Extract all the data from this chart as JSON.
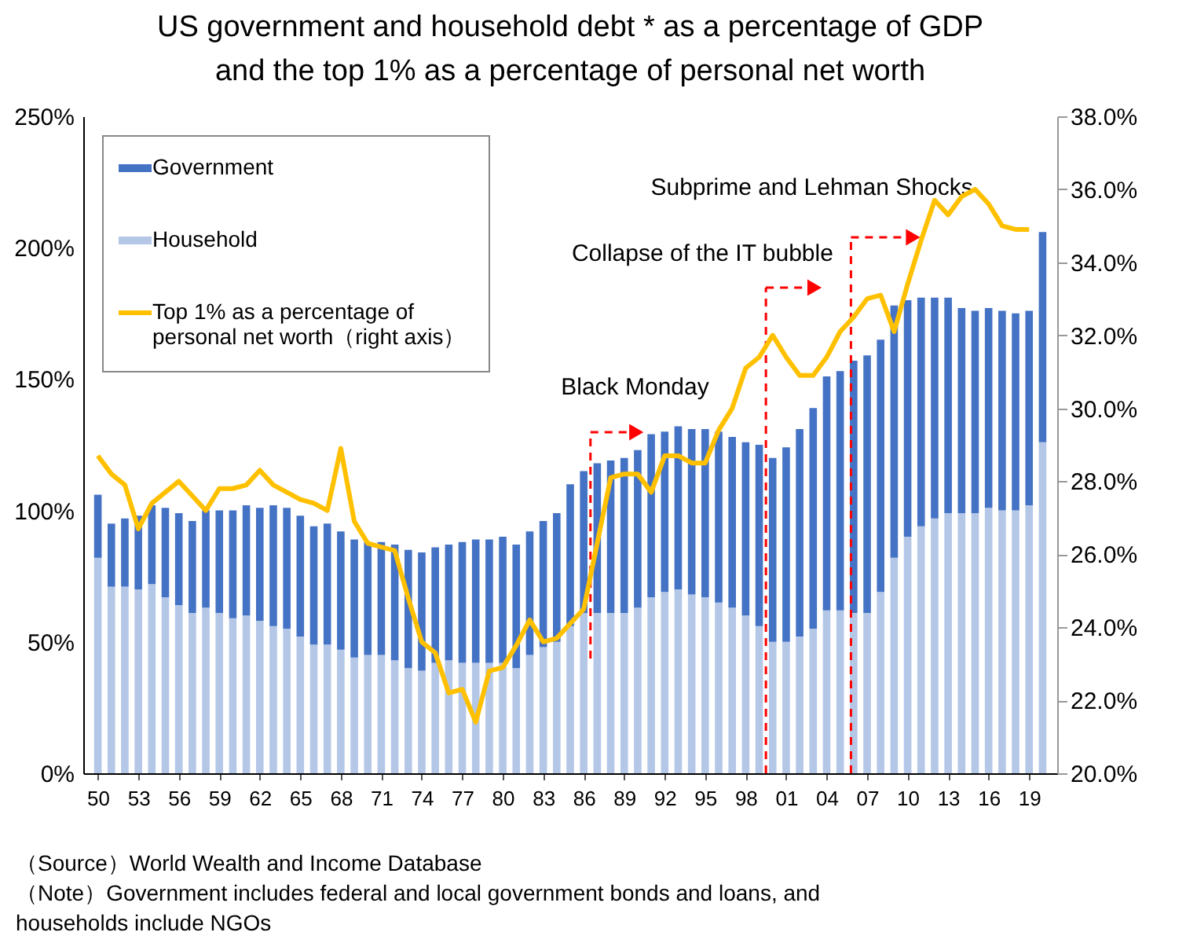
{
  "chart_data": {
    "type": "bar",
    "title": "US government and household debt * as a percentage of GDP and the top 1% as a percentage of personal net worth",
    "x": [
      1950,
      1951,
      1952,
      1953,
      1954,
      1955,
      1956,
      1957,
      1958,
      1959,
      1960,
      1961,
      1962,
      1963,
      1964,
      1965,
      1966,
      1967,
      1968,
      1969,
      1970,
      1971,
      1972,
      1973,
      1974,
      1975,
      1976,
      1977,
      1978,
      1979,
      1980,
      1981,
      1982,
      1983,
      1984,
      1985,
      1986,
      1987,
      1988,
      1989,
      1990,
      1991,
      1992,
      1993,
      1994,
      1995,
      1996,
      1997,
      1998,
      1999,
      2000,
      2001,
      2002,
      2003,
      2004,
      2005,
      2006,
      2007,
      2008,
      2009,
      2010,
      2011,
      2012,
      2013,
      2014,
      2015,
      2016,
      2017,
      2018,
      2019,
      2020
    ],
    "stacked": true,
    "series": [
      {
        "name": "Household",
        "color": "#b4c7e7",
        "values": [
          82,
          71,
          71,
          70,
          72,
          67,
          64,
          61,
          63,
          61,
          59,
          60,
          58,
          56,
          55,
          52,
          49,
          49,
          47,
          44,
          45,
          45,
          43,
          40,
          39,
          42,
          43,
          42,
          42,
          42,
          42,
          40,
          45,
          48,
          50,
          56,
          61,
          61,
          61,
          61,
          63,
          67,
          69,
          70,
          68,
          67,
          65,
          63,
          60,
          56,
          50,
          50,
          52,
          55,
          62,
          62,
          61,
          61,
          69,
          82,
          90,
          94,
          97,
          99,
          99,
          99,
          101,
          100,
          100,
          102,
          126
        ]
      },
      {
        "name": "Government",
        "color": "#4472c4",
        "values": [
          24,
          24,
          26,
          28,
          30,
          34,
          35,
          35,
          37,
          39,
          41,
          42,
          43,
          46,
          46,
          46,
          45,
          46,
          45,
          45,
          43,
          43,
          44,
          45,
          45,
          44,
          44,
          46,
          47,
          47,
          48,
          47,
          47,
          48,
          49,
          54,
          54,
          57,
          58,
          59,
          60,
          62,
          61,
          62,
          63,
          64,
          65,
          65,
          66,
          69,
          70,
          74,
          79,
          84,
          89,
          91,
          96,
          98,
          96,
          96,
          90,
          87,
          84,
          82,
          78,
          77,
          76,
          76,
          75,
          74,
          80
        ]
      },
      {
        "name": "Top 1% as a percentage of personal net worth（right axis）",
        "type": "line",
        "axis": "y2",
        "color": "#ffc000",
        "values": [
          28.7,
          28.2,
          27.9,
          26.7,
          27.4,
          27.7,
          28.0,
          27.6,
          27.2,
          27.8,
          27.8,
          27.9,
          28.3,
          27.9,
          27.7,
          27.5,
          27.4,
          27.2,
          28.9,
          26.9,
          26.3,
          26.2,
          26.1,
          24.8,
          23.6,
          23.3,
          22.2,
          22.3,
          21.4,
          22.8,
          22.9,
          23.5,
          24.2,
          23.6,
          23.7,
          24.1,
          24.5,
          26.3,
          28.1,
          28.2,
          28.2,
          27.7,
          28.7,
          28.7,
          28.5,
          28.5,
          29.4,
          30.0,
          31.1,
          31.4,
          32.0,
          31.4,
          30.9,
          30.9,
          31.4,
          32.1,
          32.5,
          33.0,
          33.1,
          32.1,
          33.4,
          34.6,
          35.7,
          35.3,
          35.8,
          36.0,
          35.6,
          35.0,
          34.9,
          34.9,
          null
        ]
      }
    ],
    "xlim": [
      1949.5,
      2020.5
    ],
    "xticks": [
      {
        "value": 1950,
        "label": "50"
      },
      {
        "value": 1953,
        "label": "53"
      },
      {
        "value": 1956,
        "label": "56"
      },
      {
        "value": 1959,
        "label": "59"
      },
      {
        "value": 1962,
        "label": "62"
      },
      {
        "value": 1965,
        "label": "65"
      },
      {
        "value": 1968,
        "label": "68"
      },
      {
        "value": 1971,
        "label": "71"
      },
      {
        "value": 1974,
        "label": "74"
      },
      {
        "value": 1977,
        "label": "77"
      },
      {
        "value": 1980,
        "label": "80"
      },
      {
        "value": 1983,
        "label": "83"
      },
      {
        "value": 1986,
        "label": "86"
      },
      {
        "value": 1989,
        "label": "89"
      },
      {
        "value": 1992,
        "label": "92"
      },
      {
        "value": 1995,
        "label": "95"
      },
      {
        "value": 1998,
        "label": "98"
      },
      {
        "value": 2001,
        "label": "01"
      },
      {
        "value": 2004,
        "label": "04"
      },
      {
        "value": 2007,
        "label": "07"
      },
      {
        "value": 2010,
        "label": "10"
      },
      {
        "value": 2013,
        "label": "13"
      },
      {
        "value": 2016,
        "label": "16"
      },
      {
        "value": 2019,
        "label": "19"
      }
    ],
    "ylim": [
      0,
      250
    ],
    "yticks": [
      {
        "value": 0,
        "label": "0%"
      },
      {
        "value": 50,
        "label": "50%"
      },
      {
        "value": 100,
        "label": "100%"
      },
      {
        "value": 150,
        "label": "150%"
      },
      {
        "value": 200,
        "label": "200%"
      },
      {
        "value": 250,
        "label": "250%"
      }
    ],
    "y2lim": [
      20,
      38
    ],
    "y2ticks": [
      {
        "value": 20,
        "label": "20.0%"
      },
      {
        "value": 22,
        "label": "22.0%"
      },
      {
        "value": 24,
        "label": "24.0%"
      },
      {
        "value": 26,
        "label": "26.0%"
      },
      {
        "value": 28,
        "label": "28.0%"
      },
      {
        "value": 30,
        "label": "30.0%"
      },
      {
        "value": 32,
        "label": "32.0%"
      },
      {
        "value": 34,
        "label": "34.0%"
      },
      {
        "value": 36,
        "label": "36.0%"
      },
      {
        "value": 38,
        "label": "38.0%"
      }
    ],
    "ref_lines": [
      {
        "axis": "x",
        "value": 1986.5,
        "label": "Black Monday",
        "color": "#ff0000",
        "line_style": "dashed"
      },
      {
        "axis": "x",
        "value": 1999.5,
        "label": "Collapse of the IT bubble",
        "color": "#ff0000",
        "line_style": "dashed"
      },
      {
        "axis": "x",
        "value": 2005.8,
        "label": "Subprime and Lehman Shocks",
        "color": "#ff0000",
        "line_style": "dashed"
      }
    ],
    "legend": "top left",
    "grid": false,
    "marker": "none",
    "line_style": "solid",
    "annotations": [
      "（Source）World Wealth and Income Database",
      "（Note）Government includes federal and local government bonds and loans, and households include NGOs"
    ]
  }
}
